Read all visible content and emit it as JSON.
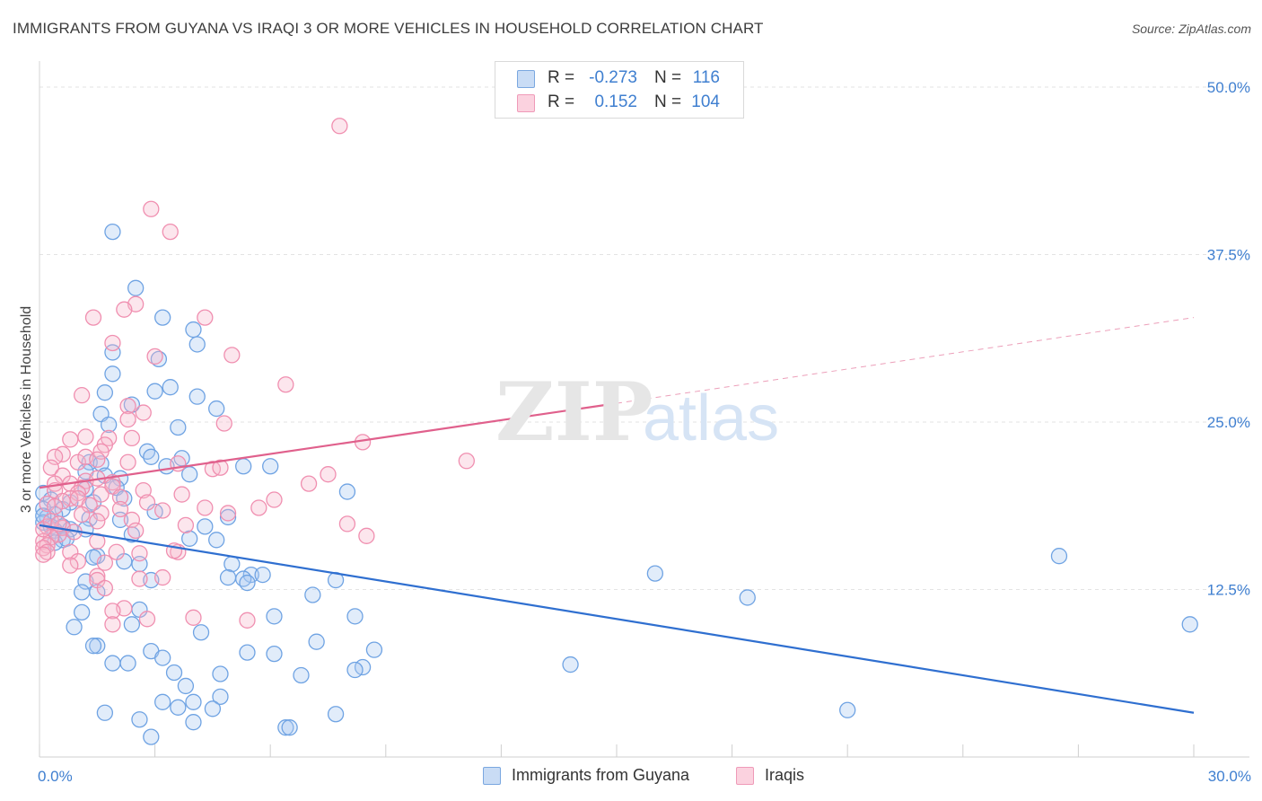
{
  "header": {
    "title": "IMMIGRANTS FROM GUYANA VS IRAQI 3 OR MORE VEHICLES IN HOUSEHOLD CORRELATION CHART",
    "source": "Source: ZipAtlas.com"
  },
  "watermark": {
    "zip": "ZIP",
    "atlas": "atlas"
  },
  "legend": {
    "rows": [
      {
        "r_label": "R =",
        "r_value": "-0.273",
        "n_label": "N =",
        "n_value": "116",
        "color": "#a9c8f0"
      },
      {
        "r_label": "R =",
        "r_value": "0.152",
        "n_label": "N =",
        "n_value": "104",
        "color": "#f6b6cb"
      }
    ]
  },
  "bottom_legend": [
    {
      "label": "Immigrants from Guyana",
      "color": "#a9c8f0"
    },
    {
      "label": "Iraqis",
      "color": "#f6b6cb"
    }
  ],
  "chart_data": {
    "type": "scatter",
    "title": "IMMIGRANTS FROM GUYANA VS IRAQI 3 OR MORE VEHICLES IN HOUSEHOLD CORRELATION CHART",
    "xlabel": "",
    "ylabel": "3 or more Vehicles in Household",
    "xlim": [
      0,
      30
    ],
    "ylim": [
      0,
      52
    ],
    "y_ticks": [
      {
        "value": 12.5,
        "label": "12.5%"
      },
      {
        "value": 25.0,
        "label": "25.0%"
      },
      {
        "value": 37.5,
        "label": "37.5%"
      },
      {
        "value": 50.0,
        "label": "50.0%"
      }
    ],
    "x_tick_labels": [
      {
        "value": 0,
        "label": "0.0%"
      },
      {
        "value": 30,
        "label": "30.0%"
      }
    ],
    "grid": true,
    "legend_position": "top-center",
    "series": [
      {
        "name": "Immigrants from Guyana",
        "color": "#6fa3e3",
        "fill": "rgba(169,200,240,0.35)",
        "trend": {
          "x": [
            0,
            30
          ],
          "y": [
            17.3,
            3.3
          ],
          "color": "#2f6fd0"
        },
        "points": [
          [
            1.9,
            39.2
          ],
          [
            2.5,
            35.0
          ],
          [
            3.2,
            32.8
          ],
          [
            4.0,
            31.9
          ],
          [
            4.1,
            30.8
          ],
          [
            1.9,
            30.2
          ],
          [
            3.1,
            29.7
          ],
          [
            1.9,
            28.6
          ],
          [
            3.4,
            27.6
          ],
          [
            3.0,
            27.3
          ],
          [
            1.7,
            27.2
          ],
          [
            4.1,
            26.9
          ],
          [
            2.4,
            26.3
          ],
          [
            4.6,
            26.0
          ],
          [
            1.6,
            25.6
          ],
          [
            1.8,
            24.8
          ],
          [
            3.6,
            24.6
          ],
          [
            2.8,
            22.8
          ],
          [
            2.9,
            22.4
          ],
          [
            3.7,
            22.3
          ],
          [
            1.3,
            22.0
          ],
          [
            1.6,
            21.9
          ],
          [
            3.9,
            21.1
          ],
          [
            5.3,
            21.7
          ],
          [
            6.0,
            21.7
          ],
          [
            3.3,
            21.7
          ],
          [
            1.2,
            21.3
          ],
          [
            1.7,
            21.0
          ],
          [
            2.1,
            20.8
          ],
          [
            1.2,
            20.0
          ],
          [
            2.0,
            20.1
          ],
          [
            0.1,
            19.7
          ],
          [
            2.2,
            19.3
          ],
          [
            0.3,
            19.2
          ],
          [
            1.4,
            19.0
          ],
          [
            8.0,
            19.8
          ],
          [
            0.8,
            19.0
          ],
          [
            0.6,
            18.5
          ],
          [
            0.1,
            18.5
          ],
          [
            0.4,
            18.1
          ],
          [
            0.2,
            17.9
          ],
          [
            1.3,
            17.8
          ],
          [
            2.1,
            17.7
          ],
          [
            3.0,
            18.3
          ],
          [
            4.9,
            17.9
          ],
          [
            0.1,
            17.5
          ],
          [
            0.6,
            17.2
          ],
          [
            1.2,
            17.0
          ],
          [
            0.3,
            17.2
          ],
          [
            0.4,
            16.9
          ],
          [
            0.8,
            17.0
          ],
          [
            2.4,
            16.6
          ],
          [
            4.3,
            17.2
          ],
          [
            0.6,
            16.2
          ],
          [
            0.4,
            16.0
          ],
          [
            0.7,
            16.3
          ],
          [
            3.9,
            16.3
          ],
          [
            4.6,
            16.2
          ],
          [
            1.5,
            15.0
          ],
          [
            1.4,
            14.9
          ],
          [
            2.2,
            14.6
          ],
          [
            2.6,
            14.4
          ],
          [
            5.0,
            14.4
          ],
          [
            4.9,
            13.4
          ],
          [
            1.2,
            13.1
          ],
          [
            2.9,
            13.2
          ],
          [
            5.5,
            13.6
          ],
          [
            5.8,
            13.6
          ],
          [
            5.3,
            13.3
          ],
          [
            7.7,
            13.2
          ],
          [
            5.4,
            13.0
          ],
          [
            1.1,
            12.3
          ],
          [
            1.5,
            12.3
          ],
          [
            16.0,
            13.7
          ],
          [
            18.4,
            11.9
          ],
          [
            26.5,
            15.0
          ],
          [
            7.1,
            12.1
          ],
          [
            2.6,
            11.0
          ],
          [
            1.1,
            10.8
          ],
          [
            6.1,
            10.5
          ],
          [
            8.2,
            10.5
          ],
          [
            0.9,
            9.7
          ],
          [
            2.4,
            9.9
          ],
          [
            4.2,
            9.3
          ],
          [
            29.9,
            9.9
          ],
          [
            7.2,
            8.6
          ],
          [
            1.5,
            8.3
          ],
          [
            1.4,
            8.3
          ],
          [
            2.9,
            7.9
          ],
          [
            5.4,
            7.8
          ],
          [
            6.1,
            7.7
          ],
          [
            8.7,
            8.0
          ],
          [
            3.2,
            7.4
          ],
          [
            1.9,
            7.0
          ],
          [
            2.3,
            7.0
          ],
          [
            8.4,
            6.7
          ],
          [
            8.2,
            6.5
          ],
          [
            3.5,
            6.3
          ],
          [
            4.7,
            6.2
          ],
          [
            6.8,
            6.1
          ],
          [
            13.8,
            6.9
          ],
          [
            3.8,
            5.3
          ],
          [
            4.0,
            4.1
          ],
          [
            4.7,
            4.5
          ],
          [
            3.2,
            4.1
          ],
          [
            3.6,
            3.7
          ],
          [
            4.5,
            3.6
          ],
          [
            1.7,
            3.3
          ],
          [
            2.6,
            2.8
          ],
          [
            4.0,
            2.6
          ],
          [
            7.7,
            3.2
          ],
          [
            21.0,
            3.5
          ],
          [
            6.4,
            2.2
          ],
          [
            6.5,
            2.2
          ],
          [
            2.9,
            1.5
          ],
          [
            0.1,
            18.0
          ]
        ]
      },
      {
        "name": "Iraqis",
        "color": "#f08fb0",
        "fill": "rgba(246,182,203,0.35)",
        "trend": {
          "x": [
            0,
            15
          ],
          "y": [
            20.1,
            26.4
          ],
          "color": "#e0608c",
          "dashed_extension": {
            "x": [
              15,
              30
            ],
            "y": [
              26.4,
              32.8
            ]
          }
        },
        "points": [
          [
            7.8,
            47.1
          ],
          [
            2.9,
            40.9
          ],
          [
            3.4,
            39.2
          ],
          [
            2.5,
            33.8
          ],
          [
            2.2,
            33.4
          ],
          [
            1.4,
            32.8
          ],
          [
            4.3,
            32.8
          ],
          [
            1.9,
            30.9
          ],
          [
            3.0,
            29.9
          ],
          [
            5.0,
            30.0
          ],
          [
            6.4,
            27.8
          ],
          [
            1.1,
            27.0
          ],
          [
            2.3,
            26.2
          ],
          [
            2.7,
            25.7
          ],
          [
            2.3,
            25.2
          ],
          [
            4.8,
            24.9
          ],
          [
            1.2,
            23.9
          ],
          [
            0.8,
            23.7
          ],
          [
            1.8,
            23.8
          ],
          [
            2.4,
            23.8
          ],
          [
            8.4,
            23.5
          ],
          [
            1.7,
            23.3
          ],
          [
            1.6,
            22.8
          ],
          [
            0.6,
            22.6
          ],
          [
            0.4,
            22.4
          ],
          [
            1.0,
            22.0
          ],
          [
            1.2,
            22.4
          ],
          [
            1.5,
            22.2
          ],
          [
            2.3,
            22.0
          ],
          [
            3.6,
            21.9
          ],
          [
            11.1,
            22.1
          ],
          [
            4.5,
            21.5
          ],
          [
            4.7,
            21.6
          ],
          [
            0.3,
            21.6
          ],
          [
            0.6,
            21.0
          ],
          [
            1.2,
            20.6
          ],
          [
            7.5,
            21.1
          ],
          [
            0.4,
            20.4
          ],
          [
            0.8,
            20.4
          ],
          [
            1.5,
            20.8
          ],
          [
            1.9,
            20.5
          ],
          [
            7.0,
            20.4
          ],
          [
            0.4,
            19.9
          ],
          [
            1.1,
            20.1
          ],
          [
            1.9,
            20.2
          ],
          [
            2.7,
            19.9
          ],
          [
            1.0,
            19.7
          ],
          [
            1.6,
            19.6
          ],
          [
            2.1,
            19.4
          ],
          [
            3.7,
            19.6
          ],
          [
            0.8,
            19.3
          ],
          [
            1.0,
            19.3
          ],
          [
            0.6,
            19.1
          ],
          [
            6.1,
            19.2
          ],
          [
            0.2,
            18.9
          ],
          [
            0.4,
            18.7
          ],
          [
            2.1,
            18.5
          ],
          [
            3.2,
            18.4
          ],
          [
            4.3,
            18.6
          ],
          [
            4.9,
            18.2
          ],
          [
            5.7,
            18.6
          ],
          [
            1.6,
            18.2
          ],
          [
            2.4,
            17.7
          ],
          [
            1.5,
            17.6
          ],
          [
            0.2,
            17.2
          ],
          [
            0.6,
            17.1
          ],
          [
            3.8,
            17.3
          ],
          [
            8.0,
            17.4
          ],
          [
            2.5,
            16.9
          ],
          [
            0.5,
            16.6
          ],
          [
            0.3,
            16.4
          ],
          [
            8.5,
            16.5
          ],
          [
            0.1,
            16.1
          ],
          [
            1.5,
            16.1
          ],
          [
            0.2,
            15.8
          ],
          [
            0.1,
            15.6
          ],
          [
            0.2,
            15.3
          ],
          [
            0.1,
            15.1
          ],
          [
            0.8,
            15.3
          ],
          [
            2.0,
            15.3
          ],
          [
            2.6,
            15.2
          ],
          [
            3.6,
            15.3
          ],
          [
            1.0,
            14.6
          ],
          [
            1.7,
            14.5
          ],
          [
            0.8,
            14.3
          ],
          [
            1.5,
            13.5
          ],
          [
            1.5,
            13.2
          ],
          [
            2.6,
            13.3
          ],
          [
            1.7,
            12.6
          ],
          [
            3.2,
            13.4
          ],
          [
            2.2,
            11.1
          ],
          [
            1.9,
            10.9
          ],
          [
            2.8,
            10.3
          ],
          [
            4.0,
            10.4
          ],
          [
            5.4,
            10.2
          ],
          [
            1.9,
            9.9
          ],
          [
            0.1,
            17.0
          ],
          [
            0.3,
            17.6
          ],
          [
            1.3,
            18.8
          ],
          [
            0.9,
            16.8
          ],
          [
            2.8,
            19.0
          ],
          [
            1.1,
            18.1
          ],
          [
            3.5,
            15.4
          ],
          [
            0.5,
            17.4
          ]
        ]
      }
    ]
  }
}
